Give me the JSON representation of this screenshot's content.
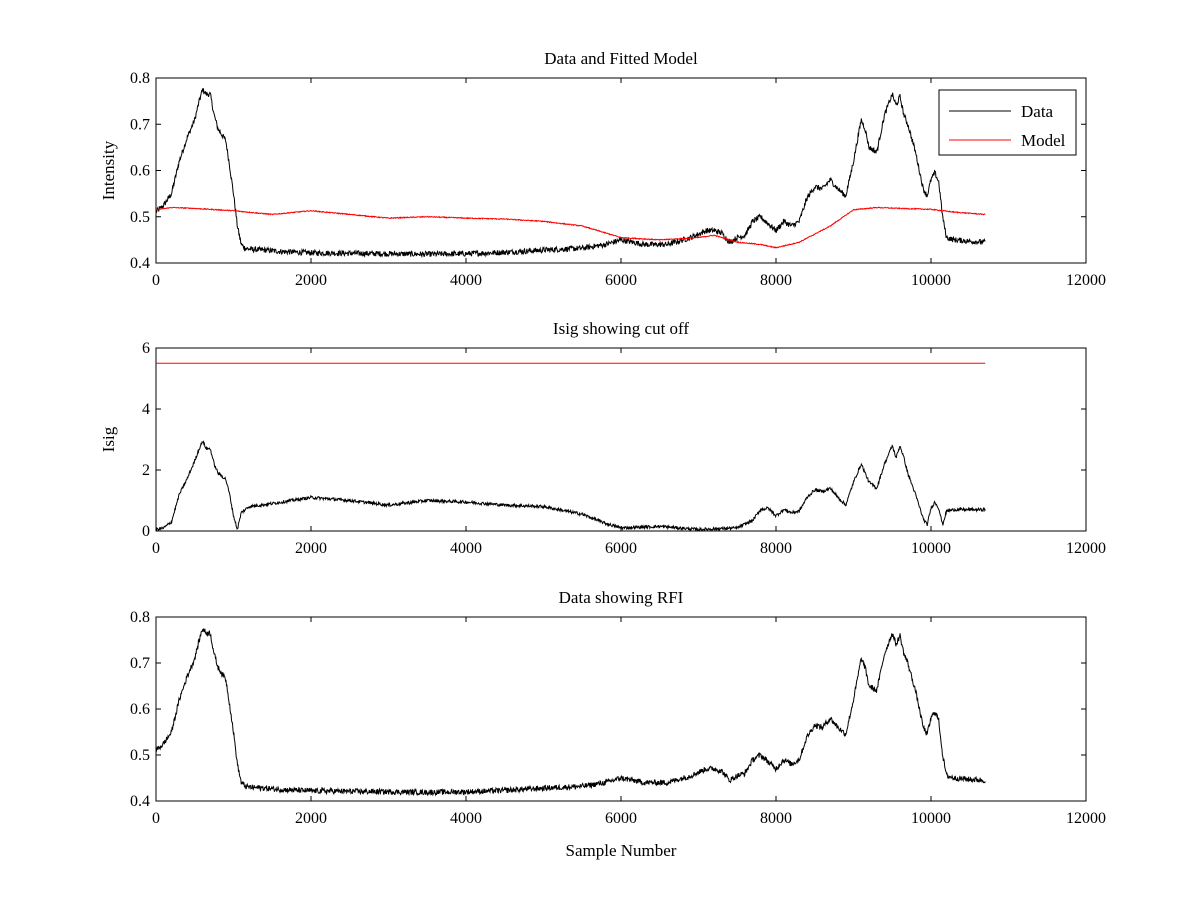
{
  "chart_data": [
    {
      "type": "line",
      "title": "Data and Fitted Model",
      "xlabel": "",
      "ylabel": "Intensity",
      "xlim": [
        0,
        12000
      ],
      "ylim": [
        0.4,
        0.8
      ],
      "xticks": [
        0,
        2000,
        4000,
        6000,
        8000,
        10000,
        12000
      ],
      "xtick_labels": [
        "0",
        "2000",
        "4000",
        "6000",
        "8000",
        "10000",
        "12000"
      ],
      "yticks": [
        0.4,
        0.5,
        0.6,
        0.7,
        0.8
      ],
      "ytick_labels": [
        "0.4",
        "0.5",
        "0.6",
        "0.7",
        "0.8"
      ],
      "grid": false,
      "legend": {
        "placement": "top-right",
        "entries": [
          {
            "label": "Data",
            "color": "#000000"
          },
          {
            "label": "Model",
            "color": "#ff0000"
          }
        ]
      },
      "series": [
        {
          "name": "Data",
          "color": "#000000",
          "noise": 0.006,
          "x": [
            0,
            100,
            200,
            300,
            400,
            500,
            550,
            600,
            650,
            700,
            750,
            800,
            900,
            950,
            1000,
            1050,
            1100,
            1150,
            1200,
            1400,
            1600,
            2000,
            2500,
            3000,
            3500,
            4000,
            4500,
            5000,
            5500,
            5800,
            6000,
            6300,
            6600,
            6900,
            7100,
            7200,
            7300,
            7400,
            7500,
            7600,
            7700,
            7800,
            7900,
            8000,
            8100,
            8200,
            8300,
            8400,
            8500,
            8600,
            8700,
            8800,
            8900,
            9000,
            9100,
            9150,
            9200,
            9300,
            9400,
            9500,
            9550,
            9600,
            9650,
            9700,
            9800,
            9900,
            9950,
            10000,
            10050,
            10100,
            10150,
            10200,
            10300,
            10500,
            10700
          ],
          "y": [
            0.51,
            0.525,
            0.55,
            0.62,
            0.67,
            0.71,
            0.745,
            0.775,
            0.765,
            0.765,
            0.72,
            0.69,
            0.665,
            0.61,
            0.55,
            0.48,
            0.44,
            0.432,
            0.43,
            0.428,
            0.425,
            0.422,
            0.421,
            0.42,
            0.419,
            0.42,
            0.423,
            0.428,
            0.432,
            0.44,
            0.45,
            0.44,
            0.44,
            0.455,
            0.47,
            0.47,
            0.465,
            0.445,
            0.455,
            0.46,
            0.49,
            0.5,
            0.485,
            0.47,
            0.49,
            0.48,
            0.49,
            0.54,
            0.565,
            0.56,
            0.58,
            0.56,
            0.545,
            0.62,
            0.71,
            0.69,
            0.65,
            0.64,
            0.72,
            0.765,
            0.74,
            0.76,
            0.72,
            0.7,
            0.64,
            0.56,
            0.545,
            0.58,
            0.595,
            0.575,
            0.5,
            0.455,
            0.45,
            0.447,
            0.445
          ]
        },
        {
          "name": "Model",
          "color": "#ff0000",
          "noise": 0.001,
          "x": [
            0,
            200,
            500,
            1000,
            1500,
            2000,
            2500,
            3000,
            3500,
            4000,
            4500,
            5000,
            5500,
            5800,
            6000,
            6500,
            7000,
            7200,
            7500,
            7800,
            8000,
            8300,
            8700,
            9000,
            9300,
            9600,
            10000,
            10300,
            10700
          ],
          "y": [
            0.515,
            0.52,
            0.518,
            0.513,
            0.505,
            0.513,
            0.505,
            0.497,
            0.5,
            0.497,
            0.495,
            0.49,
            0.48,
            0.465,
            0.455,
            0.45,
            0.455,
            0.46,
            0.445,
            0.44,
            0.433,
            0.445,
            0.48,
            0.515,
            0.52,
            0.518,
            0.516,
            0.51,
            0.505
          ]
        }
      ]
    },
    {
      "type": "line",
      "title": "Isig showing cut off",
      "xlabel": "",
      "ylabel": "Isig",
      "xlim": [
        0,
        12000
      ],
      "ylim": [
        0,
        6
      ],
      "xticks": [
        0,
        2000,
        4000,
        6000,
        8000,
        10000,
        12000
      ],
      "xtick_labels": [
        "0",
        "2000",
        "4000",
        "6000",
        "8000",
        "10000",
        "12000"
      ],
      "yticks": [
        0,
        2,
        4,
        6
      ],
      "ytick_labels": [
        "0",
        "2",
        "4",
        "6"
      ],
      "grid": false,
      "series": [
        {
          "color": "#000000",
          "noise": 0.05,
          "x": [
            0,
            100,
            200,
            300,
            400,
            500,
            550,
            600,
            650,
            700,
            750,
            800,
            900,
            950,
            1000,
            1050,
            1100,
            1200,
            1500,
            2000,
            2500,
            3000,
            3500,
            4000,
            4500,
            5000,
            5500,
            5800,
            6000,
            6500,
            7000,
            7500,
            7700,
            7800,
            7900,
            8000,
            8100,
            8200,
            8300,
            8400,
            8500,
            8600,
            8700,
            8800,
            8900,
            9000,
            9100,
            9150,
            9200,
            9300,
            9400,
            9500,
            9550,
            9600,
            9650,
            9700,
            9800,
            9900,
            9950,
            10000,
            10050,
            10100,
            10150,
            10200,
            10300,
            10500,
            10700
          ],
          "y": [
            0.05,
            0.1,
            0.3,
            1.2,
            1.7,
            2.3,
            2.65,
            2.95,
            2.7,
            2.7,
            2.2,
            1.9,
            1.7,
            1.2,
            0.5,
            0.05,
            0.6,
            0.8,
            0.9,
            1.1,
            1.0,
            0.85,
            1.0,
            0.95,
            0.85,
            0.8,
            0.55,
            0.25,
            0.1,
            0.15,
            0.05,
            0.1,
            0.35,
            0.7,
            0.75,
            0.5,
            0.7,
            0.6,
            0.65,
            1.1,
            1.35,
            1.3,
            1.4,
            1.1,
            0.85,
            1.6,
            2.2,
            1.9,
            1.6,
            1.4,
            2.2,
            2.8,
            2.4,
            2.8,
            2.4,
            1.9,
            1.2,
            0.4,
            0.2,
            0.75,
            0.95,
            0.75,
            0.2,
            0.65,
            0.7,
            0.7,
            0.7
          ]
        },
        {
          "color": "#ff0000",
          "noise": 0,
          "x": [
            0,
            10700
          ],
          "y": [
            5.5,
            5.5
          ]
        }
      ]
    },
    {
      "type": "line",
      "title": "Data showing RFI",
      "xlabel": "Sample Number",
      "ylabel": "",
      "xlim": [
        0,
        12000
      ],
      "ylim": [
        0.4,
        0.8
      ],
      "xticks": [
        0,
        2000,
        4000,
        6000,
        8000,
        10000,
        12000
      ],
      "xtick_labels": [
        "0",
        "2000",
        "4000",
        "6000",
        "8000",
        "10000",
        "12000"
      ],
      "yticks": [
        0.4,
        0.5,
        0.6,
        0.7,
        0.8
      ],
      "ytick_labels": [
        "0.4",
        "0.5",
        "0.6",
        "0.7",
        "0.8"
      ],
      "grid": false,
      "series": [
        {
          "color": "#000000",
          "noise": 0.006,
          "x": [
            0,
            100,
            200,
            300,
            400,
            500,
            550,
            600,
            650,
            700,
            750,
            800,
            900,
            950,
            1000,
            1050,
            1100,
            1150,
            1200,
            1400,
            1600,
            2000,
            2500,
            3000,
            3500,
            4000,
            4500,
            5000,
            5500,
            5800,
            6000,
            6300,
            6600,
            6900,
            7100,
            7200,
            7300,
            7400,
            7500,
            7600,
            7700,
            7800,
            7900,
            8000,
            8100,
            8200,
            8300,
            8400,
            8500,
            8600,
            8700,
            8800,
            8900,
            9000,
            9100,
            9150,
            9200,
            9300,
            9400,
            9500,
            9550,
            9600,
            9650,
            9700,
            9800,
            9900,
            9950,
            10000,
            10050,
            10100,
            10150,
            10200,
            10300,
            10500,
            10700
          ],
          "y": [
            0.51,
            0.525,
            0.55,
            0.62,
            0.67,
            0.71,
            0.745,
            0.775,
            0.765,
            0.765,
            0.72,
            0.69,
            0.665,
            0.61,
            0.55,
            0.48,
            0.44,
            0.432,
            0.43,
            0.428,
            0.425,
            0.422,
            0.421,
            0.42,
            0.419,
            0.42,
            0.423,
            0.428,
            0.432,
            0.44,
            0.45,
            0.44,
            0.44,
            0.455,
            0.47,
            0.47,
            0.465,
            0.445,
            0.455,
            0.46,
            0.49,
            0.5,
            0.485,
            0.47,
            0.49,
            0.48,
            0.49,
            0.54,
            0.565,
            0.56,
            0.58,
            0.56,
            0.545,
            0.62,
            0.71,
            0.69,
            0.65,
            0.64,
            0.72,
            0.765,
            0.74,
            0.76,
            0.72,
            0.7,
            0.64,
            0.56,
            0.545,
            0.58,
            0.595,
            0.575,
            0.5,
            0.455,
            0.45,
            0.447,
            0.445
          ]
        }
      ]
    }
  ]
}
